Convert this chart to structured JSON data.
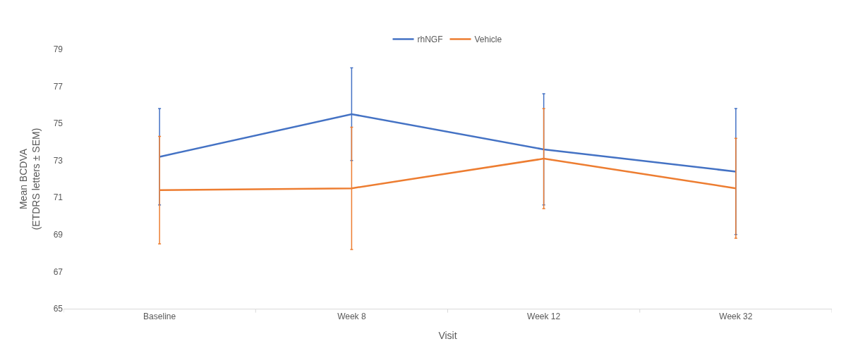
{
  "chart_data": {
    "type": "line",
    "xlabel": "Visit",
    "ylabel": "Mean BCDVA\n(ETDRS letters ± SEM)",
    "categories": [
      "Baseline",
      "Week 8",
      "Week 12",
      "Week 32"
    ],
    "series": [
      {
        "name": "rhNGF",
        "color": "#4472c4",
        "values": [
          73.2,
          75.5,
          73.6,
          72.4
        ],
        "errors": [
          2.6,
          2.5,
          3.0,
          3.4
        ]
      },
      {
        "name": "Vehicle",
        "color": "#ed7d31",
        "values": [
          71.4,
          71.5,
          73.1,
          71.5
        ],
        "errors": [
          2.9,
          3.3,
          2.7,
          2.7
        ]
      }
    ],
    "ylim": [
      65,
      79
    ],
    "yticks": [
      65,
      67,
      69,
      71,
      73,
      75,
      77,
      79
    ],
    "grid": false,
    "legend": "top",
    "marker": "none",
    "line_style": "solid"
  }
}
